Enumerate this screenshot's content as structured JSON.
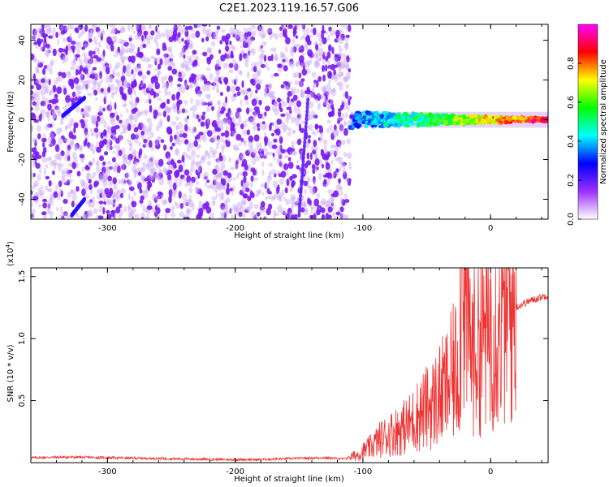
{
  "figure": {
    "title": "C2E1.2023.119.16.57.G06"
  },
  "chart_data": [
    {
      "type": "heatmap",
      "xlabel": "Height of straight line (km)",
      "ylabel": "Frequency (Hz)",
      "xlim": [
        -360,
        45
      ],
      "ylim": [
        -50,
        48
      ],
      "xticks": [
        -300,
        -200,
        -100,
        0
      ],
      "xtick_labels": [
        "-300",
        "-200",
        "-100",
        "0"
      ],
      "yticks": [
        -40,
        -20,
        0,
        20,
        40
      ],
      "ytick_labels": [
        "-40",
        "-20",
        "0",
        "20",
        "40"
      ],
      "colorbar": {
        "label": "Normalized spectral amplitude",
        "range": [
          0,
          1
        ],
        "ticks": [
          0.0,
          0.2,
          0.4,
          0.6,
          0.8
        ],
        "tick_labels": [
          "0.0",
          "0.2",
          "0.4",
          "0.6",
          "0.8"
        ],
        "colormap": [
          "#ffffff",
          "#9b30ff",
          "#0000ff",
          "#00ffff",
          "#00ff00",
          "#ffff00",
          "#ff0000",
          "#ff00ff"
        ]
      },
      "features": [
        {
          "name": "noise",
          "x_range": [
            -360,
            -110
          ],
          "y_range": [
            -50,
            48
          ],
          "amplitude": 0.1
        },
        {
          "name": "signal-band",
          "x_range": [
            -110,
            45
          ],
          "y_center": 0,
          "amplitude_start": 0.3,
          "amplitude_end": 0.9
        },
        {
          "name": "streak-1",
          "x": [
            -335,
            -318
          ],
          "y": [
            2,
            11
          ],
          "amplitude": 0.25
        },
        {
          "name": "streak-2",
          "x": [
            -328,
            -318
          ],
          "y": [
            -48,
            -40
          ],
          "amplitude": 0.25
        },
        {
          "name": "streak-3",
          "x": [
            -150,
            -143
          ],
          "y": [
            -48,
            10
          ],
          "amplitude": 0.2
        }
      ]
    },
    {
      "type": "line",
      "xlabel": "Height of straight line (km)",
      "ylabel": "SNR (10 * v/v)",
      "y_multiplier": "(x10^4)",
      "xlim": [
        -360,
        45
      ],
      "ylim": [
        0,
        1.57
      ],
      "xticks": [
        -300,
        -200,
        -100,
        0
      ],
      "xtick_labels": [
        "-300",
        "-200",
        "-100",
        "0"
      ],
      "yticks": [
        0.5,
        1.0,
        1.5
      ],
      "ytick_labels": [
        "0.5",
        "1.0",
        "1.5"
      ],
      "series": [
        {
          "color": "#ee3333",
          "x": [
            -360,
            -330,
            -300,
            -270,
            -240,
            -210,
            -180,
            -150,
            -130,
            -115,
            -105,
            -95,
            -85,
            -75,
            -65,
            -55,
            -45,
            -35,
            -25,
            -22,
            -15,
            -5,
            5,
            15,
            25,
            35,
            45
          ],
          "y": [
            0.04,
            0.045,
            0.04,
            0.035,
            0.03,
            0.025,
            0.025,
            0.035,
            0.04,
            0.03,
            0.06,
            0.12,
            0.2,
            0.25,
            0.3,
            0.4,
            0.48,
            0.6,
            0.8,
            1.57,
            0.9,
            1.05,
            1.15,
            1.22,
            1.28,
            1.32,
            1.35
          ]
        }
      ]
    }
  ]
}
